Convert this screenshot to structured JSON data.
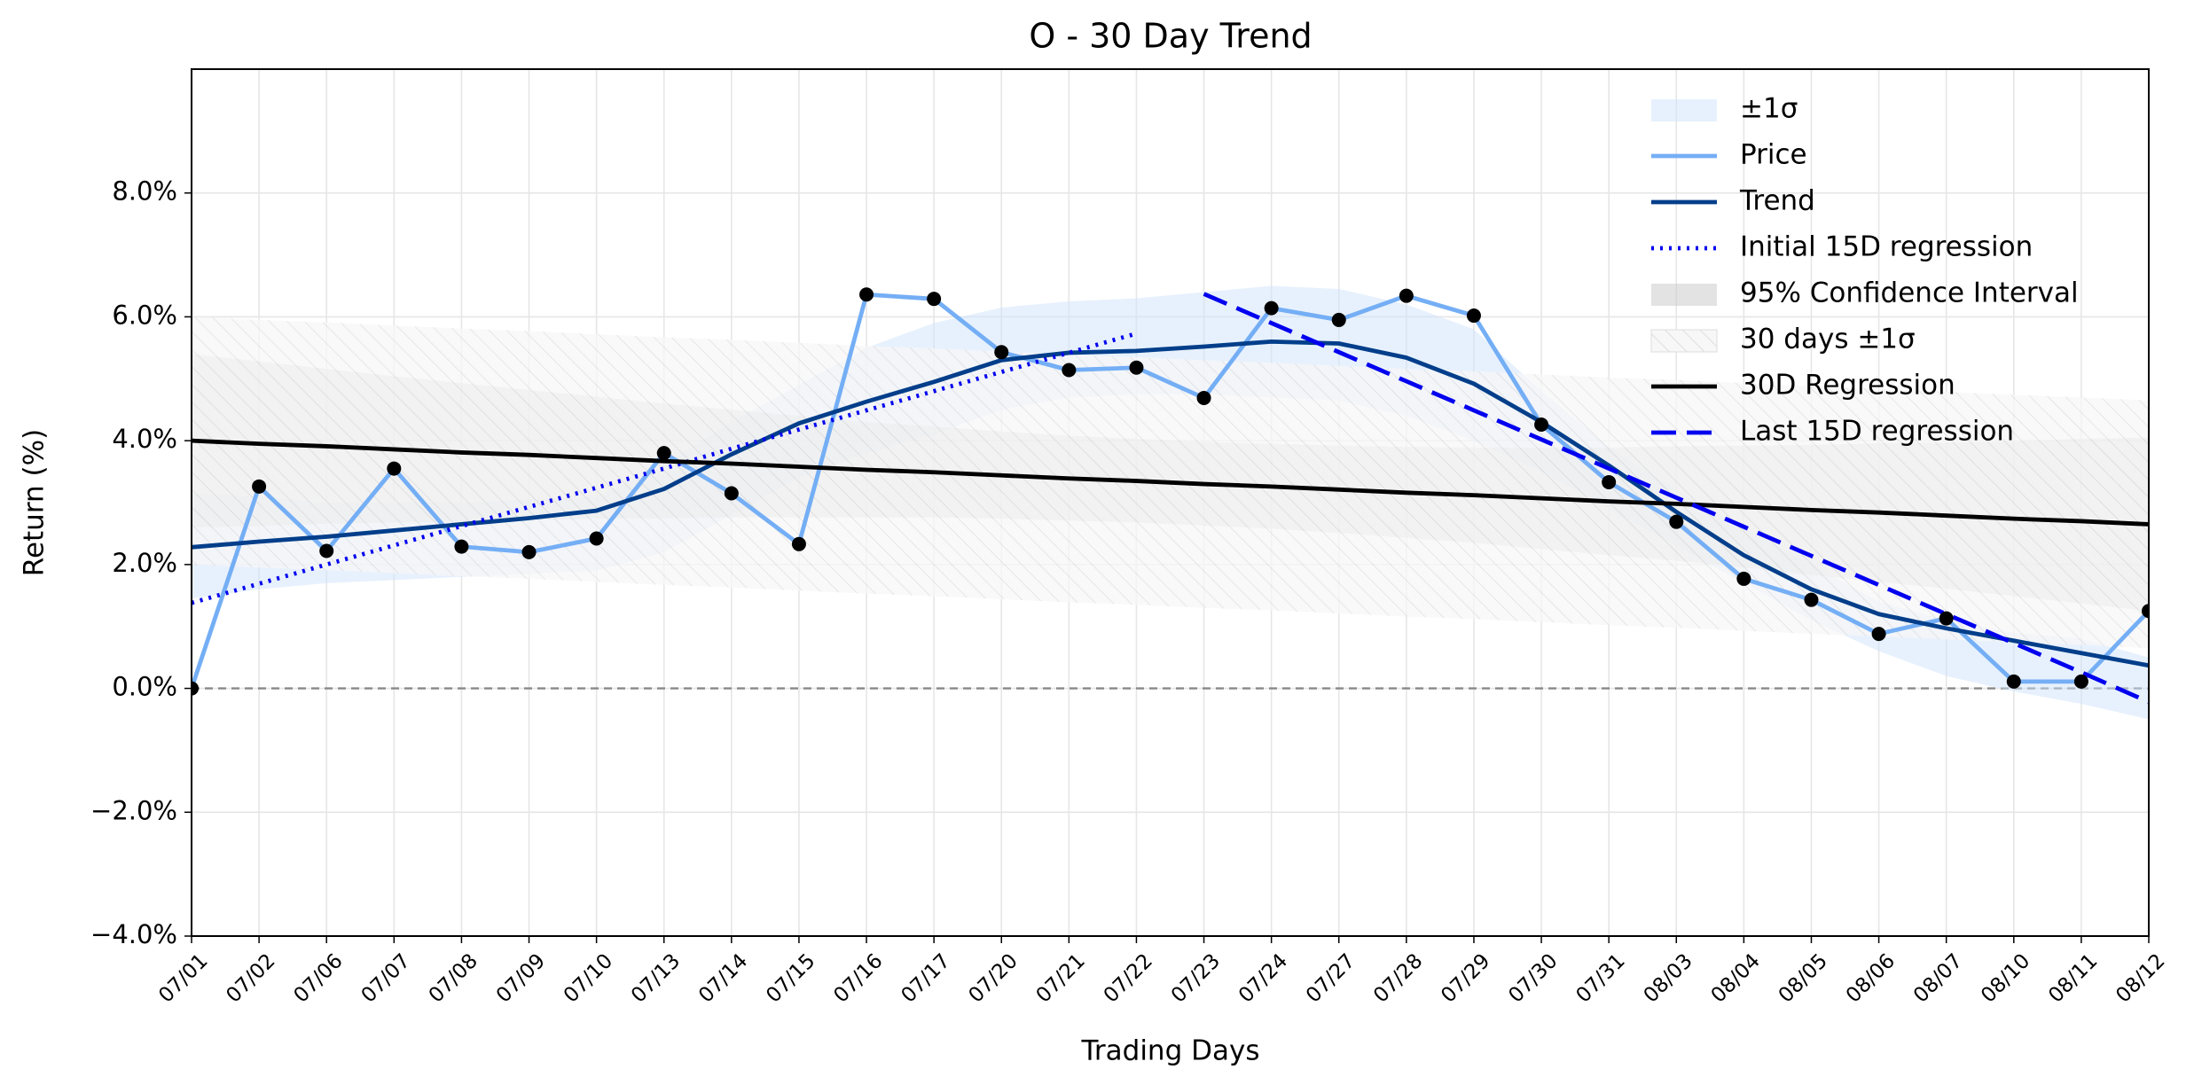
{
  "chart_data": {
    "type": "line",
    "title": "O - 30 Day Trend",
    "xlabel": "Trading Days",
    "ylabel": "Return (%)",
    "categories": [
      "07/01",
      "07/02",
      "07/06",
      "07/07",
      "07/08",
      "07/09",
      "07/10",
      "07/13",
      "07/14",
      "07/15",
      "07/16",
      "07/17",
      "07/20",
      "07/21",
      "07/22",
      "07/23",
      "07/24",
      "07/27",
      "07/28",
      "07/29",
      "07/30",
      "07/31",
      "08/03",
      "08/04",
      "08/05",
      "08/06",
      "08/07",
      "08/10",
      "08/11",
      "08/12"
    ],
    "ylim": [
      -4,
      10
    ],
    "yticks": [
      {
        "value": -4,
        "label": "−4.0%"
      },
      {
        "value": -2,
        "label": "−2.0%"
      },
      {
        "value": 0,
        "label": "0.0%"
      },
      {
        "value": 2,
        "label": "2.0%"
      },
      {
        "value": 4,
        "label": "4.0%"
      },
      {
        "value": 6,
        "label": "6.0%"
      },
      {
        "value": 8,
        "label": "8.0%"
      }
    ],
    "grid": true,
    "hline": 0,
    "legend": "upper right",
    "series": [
      {
        "name": "±1σ",
        "kind": "band",
        "color": "#cfe3fb",
        "lower": [
          1.45,
          1.6,
          1.7,
          1.75,
          1.8,
          1.85,
          1.9,
          2.2,
          2.8,
          3.4,
          3.8,
          4.1,
          4.5,
          4.7,
          4.75,
          4.75,
          4.7,
          4.65,
          4.4,
          4.0,
          3.5,
          2.9,
          2.3,
          1.7,
          1.1,
          0.6,
          0.2,
          -0.05,
          -0.25,
          -0.5
        ],
        "upper": [
          3.15,
          3.1,
          3.0,
          3.0,
          3.0,
          3.05,
          3.1,
          3.6,
          4.3,
          4.9,
          5.5,
          5.9,
          6.15,
          6.25,
          6.3,
          6.4,
          6.5,
          6.45,
          6.2,
          5.8,
          4.8,
          3.9,
          3.2,
          2.6,
          2.0,
          1.4,
          1.1,
          0.9,
          0.8,
          0.5
        ]
      },
      {
        "name": "Price",
        "kind": "line",
        "style": "solid",
        "markers": true,
        "color": "#74aef5",
        "values": [
          0,
          3.26,
          2.22,
          3.55,
          2.29,
          2.2,
          2.42,
          3.8,
          3.15,
          2.33,
          6.36,
          6.29,
          5.43,
          5.14,
          5.18,
          4.69,
          6.14,
          5.95,
          6.34,
          6.02,
          4.26,
          3.33,
          2.69,
          1.77,
          1.43,
          0.88,
          1.13,
          0.11,
          0.11,
          1.25
        ]
      },
      {
        "name": "Trend",
        "kind": "line",
        "style": "solid",
        "color": "#023e8a",
        "values": [
          2.28,
          2.37,
          2.45,
          2.55,
          2.65,
          2.75,
          2.87,
          3.22,
          3.78,
          4.28,
          4.63,
          4.95,
          5.3,
          5.42,
          5.45,
          5.52,
          5.6,
          5.57,
          5.34,
          4.92,
          4.3,
          3.6,
          2.85,
          2.15,
          1.6,
          1.2,
          0.97,
          0.77,
          0.57,
          0.37
        ]
      },
      {
        "name": "Initial 15D regression",
        "kind": "line",
        "style": "dotted",
        "color": "#0000ee",
        "values": [
          1.38,
          1.69,
          2.0,
          2.31,
          2.62,
          2.93,
          3.24,
          3.55,
          3.87,
          4.18,
          4.49,
          4.8,
          5.11,
          5.42,
          5.73,
          null,
          null,
          null,
          null,
          null,
          null,
          null,
          null,
          null,
          null,
          null,
          null,
          null,
          null,
          null
        ]
      },
      {
        "name": "95% Confidence Interval",
        "kind": "band",
        "color": "#c8c8c8",
        "lower": [
          2.6,
          2.62,
          2.66,
          2.68,
          2.69,
          2.72,
          2.74,
          2.75,
          2.76,
          2.76,
          2.76,
          2.76,
          2.74,
          2.71,
          2.68,
          2.63,
          2.58,
          2.51,
          2.43,
          2.35,
          2.25,
          2.15,
          2.06,
          1.95,
          1.83,
          1.72,
          1.61,
          1.49,
          1.37,
          1.25
        ],
        "upper": [
          5.4,
          5.28,
          5.16,
          5.04,
          4.93,
          4.82,
          4.71,
          4.6,
          4.5,
          4.4,
          4.3,
          4.23,
          4.15,
          4.08,
          4.03,
          3.98,
          3.95,
          3.92,
          3.9,
          3.89,
          3.89,
          3.89,
          3.91,
          3.92,
          3.93,
          3.96,
          3.97,
          3.99,
          4.03,
          4.05
        ]
      },
      {
        "name": "30 days ±1σ",
        "kind": "band",
        "hatch": true,
        "color": "#eeeeee",
        "lower": [
          2.0,
          1.95,
          1.91,
          1.86,
          1.81,
          1.77,
          1.72,
          1.67,
          1.63,
          1.58,
          1.53,
          1.49,
          1.44,
          1.39,
          1.35,
          1.3,
          1.26,
          1.21,
          1.16,
          1.12,
          1.07,
          1.02,
          0.98,
          0.93,
          0.88,
          0.84,
          0.79,
          0.74,
          0.7,
          0.65
        ],
        "upper": [
          6.0,
          5.95,
          5.91,
          5.86,
          5.81,
          5.77,
          5.72,
          5.67,
          5.63,
          5.58,
          5.53,
          5.49,
          5.44,
          5.39,
          5.35,
          5.3,
          5.26,
          5.21,
          5.16,
          5.12,
          5.07,
          5.02,
          4.98,
          4.93,
          4.88,
          4.84,
          4.79,
          4.74,
          4.7,
          4.65
        ]
      },
      {
        "name": "30D Regression",
        "kind": "line",
        "style": "solid",
        "color": "#000000",
        "values": [
          4.0,
          3.95,
          3.91,
          3.86,
          3.81,
          3.77,
          3.72,
          3.67,
          3.63,
          3.58,
          3.53,
          3.49,
          3.44,
          3.39,
          3.35,
          3.3,
          3.26,
          3.21,
          3.16,
          3.12,
          3.07,
          3.02,
          2.98,
          2.93,
          2.88,
          2.84,
          2.79,
          2.74,
          2.7,
          2.65
        ]
      },
      {
        "name": "Last 15D regression",
        "kind": "line",
        "style": "dashed",
        "color": "#0000ee",
        "values": [
          null,
          null,
          null,
          null,
          null,
          null,
          null,
          null,
          null,
          null,
          null,
          null,
          null,
          null,
          null,
          6.37,
          5.9,
          5.43,
          4.96,
          4.49,
          4.02,
          3.55,
          3.08,
          2.61,
          2.14,
          1.67,
          1.2,
          0.73,
          0.26,
          -0.22
        ]
      }
    ]
  }
}
